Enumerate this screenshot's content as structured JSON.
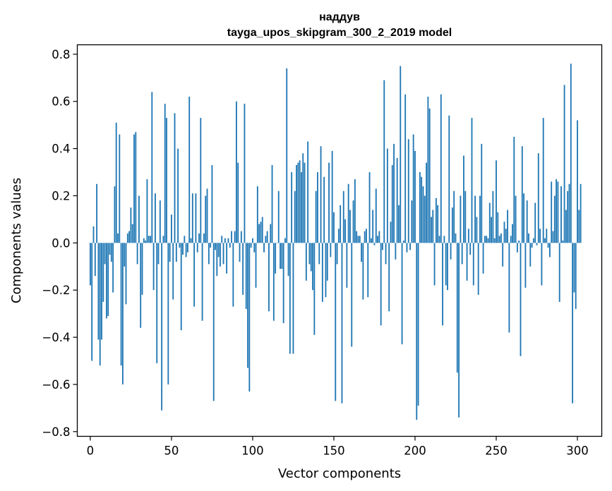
{
  "chart_data": {
    "type": "bar",
    "title": "наддув",
    "subtitle": "tayga_upos_skipgram_300_2_2019 model",
    "xlabel": "Vector components",
    "ylabel": "Components values",
    "xlim": [
      -8,
      315
    ],
    "ylim": [
      -0.82,
      0.84
    ],
    "xticks": [
      0,
      50,
      100,
      150,
      200,
      250,
      300
    ],
    "yticks": [
      -0.8,
      -0.6,
      -0.4,
      -0.2,
      0.0,
      0.2,
      0.4,
      0.6,
      0.8
    ],
    "ytick_labels": [
      "−0.8",
      "−0.6",
      "−0.4",
      "−0.2",
      "0.0",
      "0.2",
      "0.4",
      "0.6",
      "0.8"
    ],
    "grid": false,
    "bar_color": "#1f77b4",
    "values": [
      -0.18,
      -0.5,
      0.07,
      -0.14,
      0.25,
      -0.41,
      -0.52,
      -0.41,
      -0.25,
      -0.09,
      -0.32,
      -0.31,
      -0.05,
      -0.08,
      -0.21,
      0.24,
      0.51,
      0.04,
      0.46,
      -0.52,
      -0.6,
      -0.1,
      -0.26,
      0.04,
      0.05,
      0.15,
      0.08,
      0.46,
      0.47,
      -0.09,
      0.2,
      -0.36,
      -0.22,
      0.02,
      0.01,
      0.27,
      0.03,
      0.03,
      0.64,
      -0.2,
      0.21,
      -0.51,
      -0.09,
      0.18,
      -0.71,
      0.03,
      0.59,
      0.53,
      -0.6,
      -0.08,
      0.12,
      -0.24,
      0.55,
      -0.08,
      0.4,
      -0.02,
      -0.37,
      -0.05,
      0.03,
      -0.06,
      -0.04,
      0.62,
      0.02,
      0.21,
      -0.27,
      0.21,
      -0.04,
      0.04,
      0.53,
      -0.33,
      0.04,
      0.2,
      0.23,
      -0.09,
      -0.02,
      0.33,
      -0.67,
      -0.03,
      -0.14,
      -0.06,
      -0.1,
      0.03,
      -0.09,
      0.02,
      -0.13,
      0.02,
      -0.02,
      0.05,
      -0.27,
      0.05,
      0.6,
      0.34,
      -0.08,
      0.05,
      -0.22,
      0.59,
      -0.28,
      -0.53,
      -0.63,
      -0.02,
      0.02,
      -0.04,
      -0.19,
      0.24,
      0.08,
      0.09,
      0.11,
      -0.04,
      0.03,
      0.05,
      -0.29,
      0.08,
      0.33,
      -0.33,
      -0.13,
      0.0,
      0.22,
      -0.11,
      -0.11,
      -0.34,
      0.02,
      0.74,
      -0.14,
      -0.47,
      0.3,
      -0.47,
      0.22,
      0.33,
      0.34,
      0.35,
      0.3,
      0.38,
      0.34,
      -0.16,
      0.43,
      -0.09,
      -0.12,
      -0.2,
      -0.39,
      0.22,
      0.3,
      -0.09,
      0.41,
      -0.25,
      0.28,
      -0.23,
      -0.16,
      0.34,
      -0.06,
      0.39,
      0.13,
      -0.67,
      -0.09,
      0.06,
      0.16,
      -0.68,
      0.22,
      0.1,
      -0.19,
      0.25,
      0.14,
      -0.44,
      0.18,
      0.27,
      0.05,
      0.03,
      0.03,
      -0.08,
      -0.24,
      0.05,
      0.06,
      -0.23,
      0.3,
      0.02,
      0.14,
      -0.01,
      0.23,
      0.03,
      0.05,
      -0.35,
      -0.03,
      0.69,
      -0.09,
      0.4,
      -0.29,
      0.09,
      0.33,
      0.42,
      -0.07,
      0.36,
      0.16,
      0.75,
      -0.43,
      0.01,
      0.63,
      -0.04,
      0.44,
      -0.03,
      0.18,
      0.46,
      0.39,
      -0.75,
      -0.69,
      0.3,
      0.28,
      0.24,
      0.2,
      0.34,
      0.62,
      0.57,
      0.11,
      0.14,
      -0.18,
      0.19,
      0.16,
      0.03,
      0.63,
      -0.35,
      0.03,
      -0.18,
      -0.2,
      0.54,
      -0.07,
      0.15,
      0.22,
      0.04,
      -0.55,
      -0.74,
      0.2,
      -0.09,
      0.37,
      0.22,
      -0.16,
      0.06,
      -0.05,
      0.53,
      -0.18,
      0.2,
      0.11,
      -0.22,
      0.2,
      0.42,
      -0.13,
      0.03,
      0.03,
      0.02,
      0.17,
      0.11,
      0.22,
      0.02,
      0.35,
      0.13,
      0.03,
      0.04,
      -0.1,
      0.09,
      0.06,
      0.14,
      -0.38,
      0.03,
      0.08,
      0.45,
      0.2,
      -0.04,
      0.01,
      -0.48,
      0.41,
      0.21,
      -0.19,
      0.18,
      0.04,
      -0.1,
      -0.02,
      0.02,
      0.17,
      -0.01,
      0.38,
      0.06,
      -0.18,
      0.53,
      0.02,
      0.06,
      -0.02,
      -0.06,
      0.26,
      0.05,
      0.2,
      0.27,
      0.26,
      -0.25,
      0.24,
      0.01,
      0.67,
      0.14,
      0.22,
      0.25,
      0.76,
      -0.68,
      -0.21,
      -0.28,
      0.52,
      0.14,
      0.25
    ]
  }
}
